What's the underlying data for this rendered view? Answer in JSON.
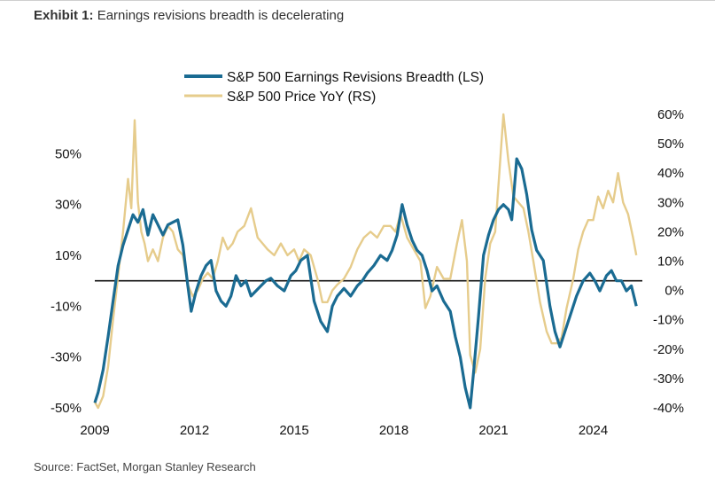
{
  "header": {
    "exhibit_label": "Exhibit 1:",
    "title_text": "Earnings revisions breadth is decelerating"
  },
  "footer": {
    "source": "Source: FactSet, Morgan Stanley Research"
  },
  "chart_data": {
    "type": "line",
    "title": "Earnings revisions breadth is decelerating",
    "xlabel": "",
    "ylabel": "",
    "x_range": [
      2009.0,
      2025.4
    ],
    "x_ticks": [
      2009,
      2012,
      2015,
      2018,
      2021,
      2024
    ],
    "x_tick_labels": [
      "2009",
      "2012",
      "2015",
      "2018",
      "2021",
      "2024"
    ],
    "left_axis": {
      "range": [
        -50,
        55
      ],
      "ticks": [
        50,
        30,
        10,
        -10,
        -30,
        -50
      ],
      "tick_labels": [
        "50%",
        "30%",
        "10%",
        "-10%",
        "-30%",
        "-50%"
      ]
    },
    "right_axis": {
      "range": [
        -40,
        60
      ],
      "ticks": [
        60,
        50,
        40,
        30,
        20,
        10,
        0,
        -10,
        -20,
        -30,
        -40
      ],
      "tick_labels": [
        "60%",
        "50%",
        "40%",
        "30%",
        "20%",
        "10%",
        "0%",
        "-10%",
        "-20%",
        "-30%",
        "-40%"
      ]
    },
    "reference_line": {
      "axis": "left",
      "value": 0
    },
    "grid": false,
    "legend_position": "top-center",
    "series": [
      {
        "name": "S&P 500 Earnings Revisions Breadth (LS)",
        "axis": "left",
        "color": "#1a6b92",
        "x": [
          2009.0,
          2009.1,
          2009.25,
          2009.4,
          2009.55,
          2009.7,
          2009.85,
          2010.0,
          2010.15,
          2010.3,
          2010.45,
          2010.6,
          2010.75,
          2010.9,
          2011.05,
          2011.2,
          2011.35,
          2011.5,
          2011.65,
          2011.8,
          2011.9,
          2012.05,
          2012.2,
          2012.35,
          2012.5,
          2012.65,
          2012.8,
          2012.95,
          2013.1,
          2013.25,
          2013.4,
          2013.55,
          2013.7,
          2013.85,
          2014.0,
          2014.15,
          2014.3,
          2014.5,
          2014.7,
          2014.9,
          2015.05,
          2015.2,
          2015.4,
          2015.6,
          2015.8,
          2016.0,
          2016.15,
          2016.3,
          2016.5,
          2016.7,
          2016.9,
          2017.05,
          2017.2,
          2017.4,
          2017.6,
          2017.8,
          2017.95,
          2018.1,
          2018.25,
          2018.4,
          2018.55,
          2018.7,
          2018.85,
          2019.0,
          2019.15,
          2019.3,
          2019.5,
          2019.7,
          2019.85,
          2020.0,
          2020.15,
          2020.3,
          2020.4,
          2020.55,
          2020.7,
          2020.85,
          2021.0,
          2021.15,
          2021.3,
          2021.45,
          2021.55,
          2021.7,
          2021.85,
          2022.0,
          2022.15,
          2022.3,
          2022.5,
          2022.7,
          2022.85,
          2023.0,
          2023.15,
          2023.35,
          2023.5,
          2023.7,
          2023.9,
          2024.05,
          2024.2,
          2024.4,
          2024.55,
          2024.7,
          2024.85,
          2025.0,
          2025.15,
          2025.3
        ],
        "values": [
          -48,
          -44,
          -35,
          -22,
          -8,
          6,
          14,
          20,
          26,
          23,
          28,
          18,
          26,
          22,
          18,
          22,
          23,
          24,
          14,
          -2,
          -12,
          -4,
          2,
          6,
          8,
          -4,
          -8,
          -10,
          -6,
          2,
          -2,
          0,
          -6,
          -4,
          -2,
          0,
          1,
          -2,
          -4,
          2,
          4,
          8,
          10,
          -8,
          -16,
          -20,
          -10,
          -6,
          -3,
          -6,
          -2,
          0,
          3,
          6,
          10,
          8,
          12,
          18,
          30,
          22,
          16,
          12,
          10,
          4,
          -4,
          -2,
          -8,
          -12,
          -22,
          -30,
          -42,
          -50,
          -36,
          -14,
          10,
          18,
          24,
          28,
          30,
          28,
          24,
          48,
          44,
          34,
          20,
          12,
          8,
          -10,
          -20,
          -26,
          -20,
          -12,
          -6,
          0,
          3,
          0,
          -4,
          2,
          4,
          0,
          0,
          -4,
          -2,
          -10
        ],
        "note": "approximate values read off chart"
      },
      {
        "name": "S&P 500 Price YoY (RS)",
        "axis": "right",
        "color": "#e6cc8c",
        "x": [
          2009.0,
          2009.1,
          2009.25,
          2009.4,
          2009.55,
          2009.7,
          2009.85,
          2010.0,
          2010.1,
          2010.2,
          2010.3,
          2010.4,
          2010.5,
          2010.6,
          2010.75,
          2010.9,
          2011.05,
          2011.2,
          2011.35,
          2011.5,
          2011.65,
          2011.8,
          2011.95,
          2012.1,
          2012.25,
          2012.4,
          2012.55,
          2012.7,
          2012.85,
          2013.0,
          2013.15,
          2013.3,
          2013.5,
          2013.7,
          2013.9,
          2014.05,
          2014.2,
          2014.4,
          2014.6,
          2014.8,
          2015.0,
          2015.15,
          2015.3,
          2015.5,
          2015.7,
          2015.85,
          2016.0,
          2016.15,
          2016.3,
          2016.5,
          2016.7,
          2016.9,
          2017.1,
          2017.3,
          2017.5,
          2017.7,
          2017.9,
          2018.05,
          2018.2,
          2018.4,
          2018.6,
          2018.8,
          2018.95,
          2019.1,
          2019.3,
          2019.5,
          2019.7,
          2019.9,
          2020.05,
          2020.2,
          2020.3,
          2020.45,
          2020.6,
          2020.75,
          2020.9,
          2021.05,
          2021.2,
          2021.3,
          2021.45,
          2021.6,
          2021.75,
          2021.9,
          2022.05,
          2022.2,
          2022.4,
          2022.6,
          2022.75,
          2022.9,
          2023.05,
          2023.2,
          2023.4,
          2023.55,
          2023.7,
          2023.85,
          2024.0,
          2024.15,
          2024.3,
          2024.45,
          2024.6,
          2024.75,
          2024.9,
          2025.05,
          2025.2,
          2025.3
        ],
        "values": [
          -38,
          -40,
          -36,
          -26,
          -10,
          5,
          20,
          38,
          28,
          58,
          30,
          20,
          16,
          10,
          14,
          10,
          18,
          22,
          20,
          14,
          12,
          2,
          -2,
          0,
          4,
          6,
          4,
          10,
          18,
          14,
          16,
          20,
          22,
          28,
          18,
          16,
          14,
          12,
          16,
          12,
          14,
          10,
          14,
          12,
          4,
          -4,
          -4,
          0,
          2,
          4,
          8,
          14,
          18,
          20,
          18,
          22,
          22,
          20,
          26,
          18,
          14,
          10,
          -6,
          -2,
          8,
          4,
          4,
          16,
          24,
          10,
          -22,
          -28,
          -20,
          4,
          16,
          20,
          44,
          60,
          44,
          32,
          30,
          28,
          20,
          10,
          -4,
          -14,
          -18,
          -18,
          -16,
          -6,
          4,
          14,
          20,
          24,
          24,
          32,
          28,
          34,
          30,
          40,
          30,
          26,
          18,
          12
        ],
        "note": "approximate values read off chart"
      }
    ]
  }
}
